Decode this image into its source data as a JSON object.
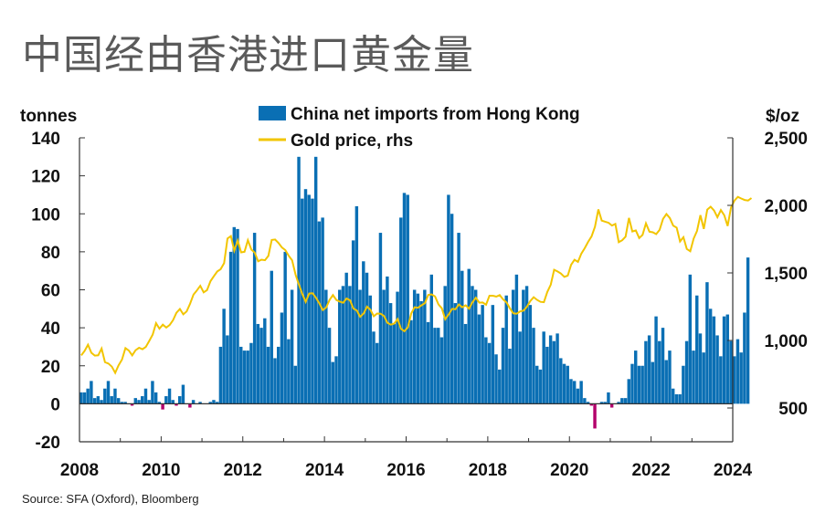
{
  "title": "中国经由香港进口黄金量",
  "source": "Source: SFA (Oxford), Bloomberg",
  "colors": {
    "imports": "#0a6fb4",
    "negative": "#b3006b",
    "gold": "#f2c500",
    "axis": "#333333"
  },
  "chart_data": {
    "type": "bar+line",
    "left_axis": {
      "unit_label": "tonnes",
      "ylim": [
        -20,
        140
      ],
      "ticks": [
        -20,
        0,
        20,
        40,
        60,
        80,
        100,
        120,
        140
      ]
    },
    "right_axis": {
      "unit_label": "$/oz",
      "ylim": [
        250,
        2500
      ],
      "ticks": [
        "500",
        "1,000",
        "1,500",
        "2,000",
        "2,500"
      ],
      "tick_values": [
        500,
        1000,
        1500,
        2000,
        2500
      ]
    },
    "x_axis": {
      "range": [
        2008,
        2024
      ],
      "ticks": [
        "2008",
        "2010",
        "2012",
        "2014",
        "2016",
        "2018",
        "2020",
        "2022",
        "2024"
      ],
      "tick_values": [
        2008,
        2010,
        2012,
        2014,
        2016,
        2018,
        2020,
        2022,
        2024
      ]
    },
    "legend": [
      "China net imports from Hong Kong",
      "Gold price, rhs"
    ],
    "grid": false,
    "series": [
      {
        "name": "China net imports from Hong Kong",
        "kind": "bar",
        "axis": "left",
        "x_start": "2008-01",
        "frequency": "monthly",
        "values": [
          6,
          6,
          8,
          12,
          3,
          4,
          2,
          8,
          12,
          4,
          8,
          3,
          1,
          1,
          0,
          -1,
          3,
          2,
          4,
          8,
          2,
          12,
          6,
          1,
          -3,
          4,
          8,
          2,
          -1,
          4,
          10,
          0,
          -2,
          2,
          0,
          1,
          0,
          0,
          1,
          2,
          1,
          30,
          50,
          36,
          80,
          93,
          92,
          30,
          28,
          28,
          32,
          90,
          42,
          40,
          45,
          30,
          70,
          24,
          30,
          48,
          80,
          34,
          60,
          20,
          130,
          108,
          113,
          110,
          108,
          130,
          96,
          98,
          60,
          40,
          22,
          25,
          60,
          62,
          69,
          62,
          86,
          104,
          60,
          75,
          69,
          57,
          38,
          32,
          90,
          60,
          67,
          53,
          42,
          59,
          98,
          111,
          110,
          44,
          60,
          58,
          54,
          60,
          43,
          68,
          40,
          40,
          35,
          62,
          110,
          100,
          53,
          90,
          70,
          42,
          71,
          62,
          60,
          47,
          52,
          35,
          32,
          52,
          26,
          18,
          40,
          57,
          29,
          60,
          68,
          38,
          60,
          62,
          52,
          40,
          20,
          18,
          38,
          30,
          36,
          33,
          37,
          24,
          21,
          20,
          13,
          12,
          8,
          12,
          3,
          1,
          -1,
          -13,
          0,
          1,
          1,
          6,
          -2,
          0,
          1,
          3,
          3,
          13,
          21,
          28,
          20,
          20,
          33,
          36,
          22,
          46,
          33,
          40,
          23,
          28,
          8,
          5,
          5,
          20,
          33,
          68,
          28,
          57,
          37,
          27,
          64,
          50,
          46,
          36,
          25,
          46,
          47,
          33,
          25,
          34,
          27,
          48,
          77
        ],
        "x_end": "2024-03"
      },
      {
        "name": "Gold price, rhs",
        "kind": "line",
        "axis": "right",
        "x_start": "2008-01",
        "frequency": "monthly",
        "values": [
          889,
          922,
          968,
          909,
          888,
          890,
          940,
          839,
          829,
          806,
          760,
          816,
          858,
          943,
          925,
          890,
          928,
          946,
          935,
          952,
          996,
          1043,
          1128,
          1087,
          1117,
          1095,
          1114,
          1150,
          1205,
          1233,
          1193,
          1215,
          1271,
          1340,
          1370,
          1405,
          1356,
          1372,
          1439,
          1476,
          1511,
          1528,
          1572,
          1755,
          1772,
          1665,
          1739,
          1652,
          1656,
          1742,
          1673,
          1650,
          1586,
          1598,
          1594,
          1626,
          1744,
          1747,
          1721,
          1688,
          1669,
          1627,
          1593,
          1487,
          1413,
          1343,
          1286,
          1347,
          1349,
          1316,
          1275,
          1225,
          1244,
          1300,
          1336,
          1299,
          1287,
          1279,
          1311,
          1297,
          1236,
          1222,
          1175,
          1200,
          1251,
          1227,
          1179,
          1199,
          1198,
          1181,
          1131,
          1117,
          1125,
          1159,
          1086,
          1068,
          1097,
          1200,
          1246,
          1242,
          1260,
          1276,
          1337,
          1341,
          1326,
          1267,
          1238,
          1157,
          1192,
          1234,
          1231,
          1266,
          1245,
          1260,
          1235,
          1283,
          1316,
          1280,
          1281,
          1265,
          1331,
          1331,
          1324,
          1336,
          1304,
          1281,
          1238,
          1201,
          1198,
          1215,
          1221,
          1250,
          1291,
          1320,
          1300,
          1286,
          1283,
          1359,
          1413,
          1523,
          1511,
          1495,
          1471,
          1480,
          1560,
          1597,
          1582,
          1643,
          1683,
          1730,
          1771,
          1842,
          1970,
          1887,
          1879,
          1871,
          1851,
          1863,
          1728,
          1742,
          1768,
          1907,
          1807,
          1814,
          1758,
          1782,
          1867,
          1805,
          1801,
          1787,
          1818,
          1900,
          1936,
          1907,
          1850,
          1835,
          1733,
          1764,
          1677,
          1660,
          1754,
          1811,
          1928,
          1826,
          1969,
          1990,
          1962,
          1912,
          1965,
          1927,
          1847,
          1984,
          2036,
          2063,
          2051,
          2040,
          2036,
          2054
        ],
        "x_end": "2024-03"
      }
    ]
  }
}
